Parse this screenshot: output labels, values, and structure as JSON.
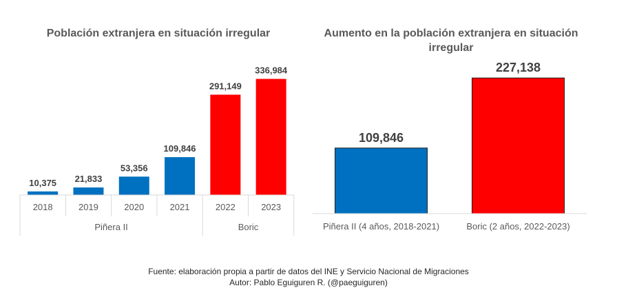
{
  "chart_data": [
    {
      "type": "bar",
      "title": "Población extranjera en situación irregular",
      "categories": [
        "2018",
        "2019",
        "2020",
        "2021",
        "2022",
        "2023"
      ],
      "groups": [
        {
          "label": "Piñera II",
          "categories": [
            "2018",
            "2019",
            "2020",
            "2021"
          ],
          "color": "#0070C0"
        },
        {
          "label": "Boric",
          "categories": [
            "2022",
            "2023"
          ],
          "color": "#FF0000"
        }
      ],
      "values": [
        10375,
        21833,
        53356,
        109846,
        291149,
        336984
      ],
      "value_labels": [
        "10,375",
        "21,833",
        "53,356",
        "109,846",
        "291,149",
        "336,984"
      ],
      "colors": [
        "#0070C0",
        "#0070C0",
        "#0070C0",
        "#0070C0",
        "#FF0000",
        "#FF0000"
      ],
      "ylim": [
        0,
        350000
      ],
      "grid": false,
      "legend": false
    },
    {
      "type": "bar",
      "title": "Aumento en la población extranjera en situación irregular",
      "categories": [
        "Piñera II (4 años, 2018-2021)",
        "Boric (2 años, 2022-2023)"
      ],
      "values": [
        109846,
        227138
      ],
      "value_labels": [
        "109,846",
        "227,138"
      ],
      "colors": [
        "#0070C0",
        "#FF0000"
      ],
      "ylim": [
        0,
        240000
      ],
      "grid": false,
      "legend": false
    }
  ],
  "footer": {
    "source": "Fuente: elaboración propia a partir de datos del INE y Servicio Nacional de Migraciones",
    "author": "Autor: Pablo Eguiguren R. (@paeguiguren)"
  }
}
